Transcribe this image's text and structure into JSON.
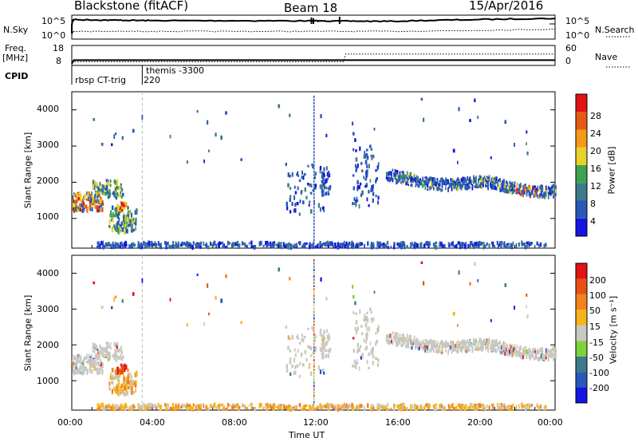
{
  "header": {
    "station": "Blackstone (fitACF)",
    "beam": "Beam 18",
    "date": "15/Apr/2016"
  },
  "noise_panel": {
    "left_label": "N.Sky",
    "left_ticks": [
      "10^5",
      "10^0"
    ],
    "right_label": "N.Search",
    "right_ticks": [
      "10^5",
      "10^0"
    ]
  },
  "freq_panel": {
    "left_label_1": "Freq.",
    "left_label_2": "[MHz]",
    "left_ticks": [
      "18",
      "8"
    ],
    "right_label": "Nave",
    "right_ticks": [
      "60",
      "0"
    ]
  },
  "cpid_panel": {
    "label": "CPID",
    "segments": [
      {
        "label": "rbsp CT-trig",
        "start_h": 0.0
      },
      {
        "label": "220",
        "start_h": 3.5
      },
      {
        "label": "themis -3300",
        "start_h": 3.5
      }
    ]
  },
  "x_axis": {
    "label": "Time UT",
    "ticks": [
      "00:00",
      "04:00",
      "08:00",
      "12:00",
      "16:00",
      "20:00",
      "00:00"
    ],
    "range_h": [
      0,
      24
    ]
  },
  "chart_data": [
    {
      "type": "line",
      "title": "",
      "series": [
        {
          "name": "N.Sky",
          "x": [
            0,
            0.1,
            2,
            4,
            8,
            12,
            13,
            16,
            20,
            24
          ],
          "y": [
            10,
            20000,
            15000,
            12000,
            11000,
            10000,
            9000,
            8000,
            20000,
            40000
          ]
        },
        {
          "name": "N.Search",
          "x": [
            0,
            0.1,
            2,
            4,
            8,
            12,
            16,
            20,
            24
          ],
          "y": [
            1,
            30,
            30,
            30,
            30,
            30,
            30,
            50,
            100
          ]
        }
      ],
      "xlim": [
        0,
        24
      ]
    },
    {
      "type": "line",
      "series": [
        {
          "name": "Freq.",
          "x": [
            0,
            0.1,
            13.5,
            24
          ],
          "y": [
            8,
            10.2,
            10.2,
            10.2
          ]
        },
        {
          "name": "Nave",
          "x": [
            0,
            13.5,
            13.6,
            24
          ],
          "y": [
            8,
            8,
            35,
            35
          ]
        }
      ],
      "xlim": [
        0,
        24
      ]
    },
    {
      "type": "heatmap",
      "ylabel": "Slant Range [km]",
      "yticks": [
        1000,
        2000,
        3000,
        4000
      ],
      "ylim": [
        180,
        4500
      ],
      "colorbar_label": "Power [dB]",
      "colorbar_ticks": [
        "28",
        "24",
        "20",
        "16",
        "12",
        "8",
        "4"
      ],
      "colorbar_colors": [
        "#1414e6",
        "#2a57b8",
        "#3c7a8c",
        "#3fa24e",
        "#e8d22a",
        "#f49a18",
        "#e85a14",
        "#e01414"
      ],
      "colorbar_range": [
        0,
        32
      ]
    },
    {
      "type": "heatmap",
      "ylabel": "Slant Range [km]",
      "yticks": [
        1000,
        2000,
        3000,
        4000
      ],
      "ylim": [
        180,
        4500
      ],
      "colorbar_label": "Velocity [m s⁻¹]",
      "colorbar_ticks": [
        "200",
        "100",
        "50",
        "15",
        "-15",
        "-50",
        "-100",
        "-200"
      ],
      "colorbar_colors": [
        "#1414e6",
        "#2a57b8",
        "#3c7a8c",
        "#7fd23c",
        "#c8c8c2",
        "#f4b41a",
        "#f4821a",
        "#e85014",
        "#e01414"
      ],
      "colorbar_range": [
        -250,
        250
      ]
    }
  ]
}
